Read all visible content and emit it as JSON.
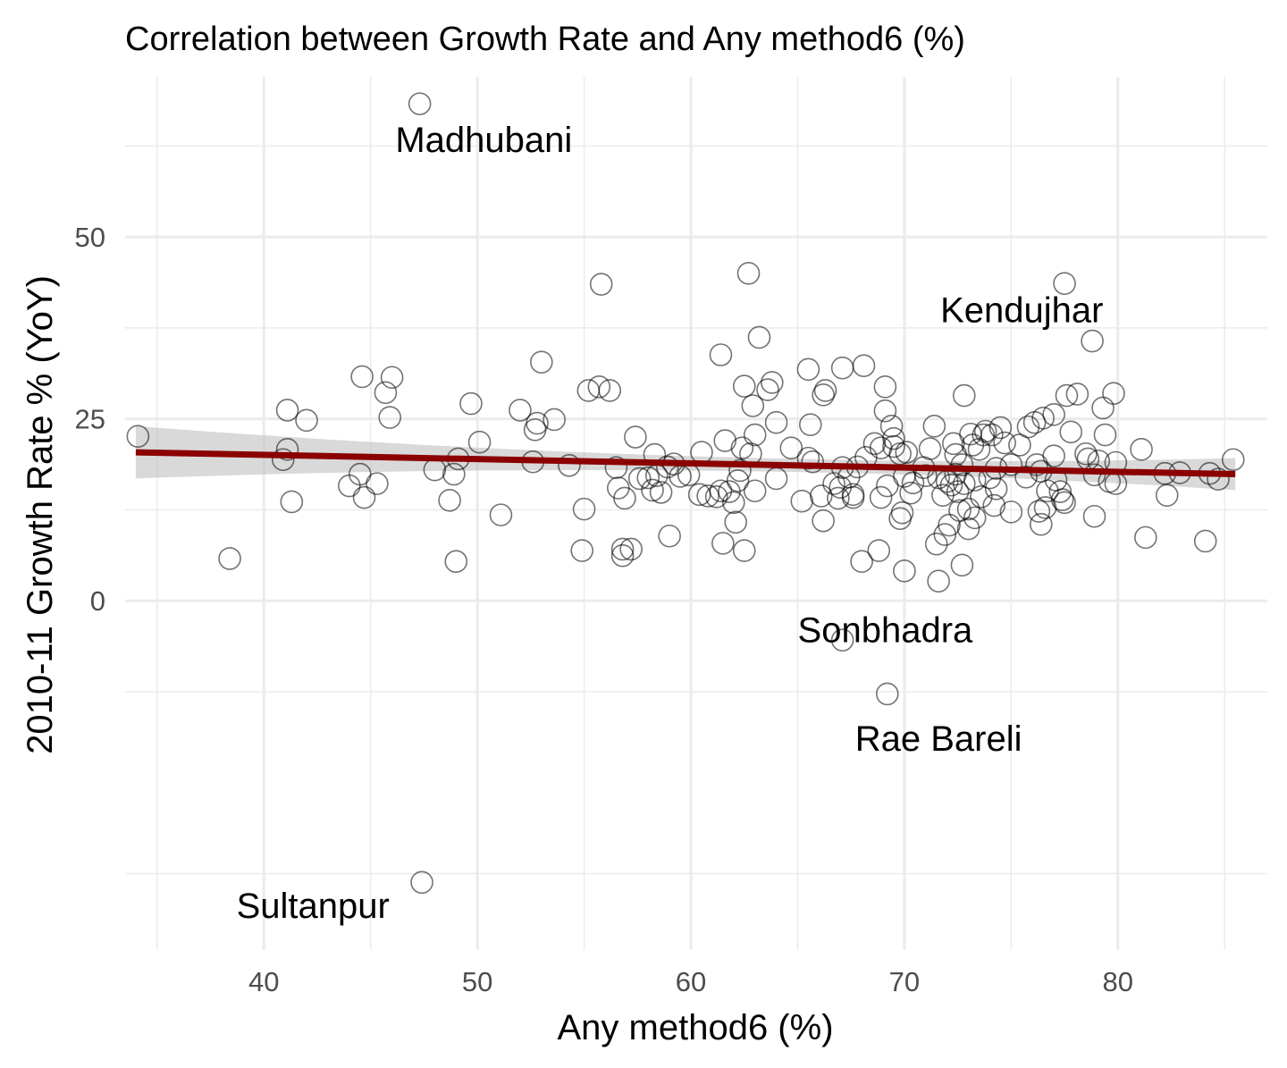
{
  "chart_data": {
    "type": "scatter",
    "title": "Correlation between Growth Rate and Any method6 (%)",
    "xlabel": "Any method6 (%)",
    "ylabel": "2010-11 Growth Rate % (YoY)",
    "xlim": [
      33.5,
      87
    ],
    "ylim": [
      -48,
      72
    ],
    "x_ticks": [
      40,
      50,
      60,
      70,
      80
    ],
    "y_ticks": [
      0,
      25,
      50
    ],
    "grid": true,
    "colors": {
      "trend_line": "#8b0000",
      "confidence_band": "#bfbfbf",
      "points": "#000000"
    },
    "trend": {
      "x": [
        34,
        85.5
      ],
      "y": [
        20.4,
        17.4
      ],
      "ci_low": [
        16.8,
        15.2
      ],
      "ci_high": [
        24.0,
        19.6
      ]
    },
    "annotations": [
      {
        "text": "Madhubani",
        "x": 50.3,
        "y": 63
      },
      {
        "text": "Kendujhar",
        "x": 75.5,
        "y": 39.6
      },
      {
        "text": "Sonbhadra",
        "x": 69.1,
        "y": -4.4
      },
      {
        "text": "Rae Bareli",
        "x": 71.6,
        "y": -19.3
      },
      {
        "text": "Sultanpur",
        "x": 42.3,
        "y": -42.3
      }
    ],
    "points": [
      [
        34.1,
        22.6
      ],
      [
        38.4,
        5.8
      ],
      [
        40.9,
        19.4
      ],
      [
        41.1,
        26.2
      ],
      [
        41.1,
        20.8
      ],
      [
        41.3,
        13.6
      ],
      [
        42.0,
        24.8
      ],
      [
        44.0,
        15.8
      ],
      [
        44.5,
        17.4
      ],
      [
        44.6,
        30.8
      ],
      [
        44.7,
        14.2
      ],
      [
        45.3,
        16.1
      ],
      [
        45.7,
        28.6
      ],
      [
        45.9,
        25.2
      ],
      [
        46.0,
        30.7
      ],
      [
        47.3,
        68.3
      ],
      [
        47.4,
        -38.7
      ],
      [
        48.0,
        18.0
      ],
      [
        48.7,
        13.8
      ],
      [
        48.9,
        17.4
      ],
      [
        49.0,
        5.4
      ],
      [
        49.1,
        19.5
      ],
      [
        49.7,
        27.1
      ],
      [
        50.1,
        21.8
      ],
      [
        51.1,
        11.8
      ],
      [
        52.0,
        26.2
      ],
      [
        52.6,
        19.1
      ],
      [
        52.7,
        23.5
      ],
      [
        52.8,
        24.4
      ],
      [
        53.0,
        32.8
      ],
      [
        53.6,
        24.9
      ],
      [
        54.3,
        18.6
      ],
      [
        54.9,
        6.9
      ],
      [
        55.0,
        12.6
      ],
      [
        55.2,
        28.9
      ],
      [
        55.7,
        29.4
      ],
      [
        55.8,
        43.5
      ],
      [
        56.2,
        28.9
      ],
      [
        56.5,
        18.3
      ],
      [
        56.6,
        15.5
      ],
      [
        56.8,
        7.1
      ],
      [
        56.8,
        6.2
      ],
      [
        56.9,
        14.1
      ],
      [
        57.2,
        7.1
      ],
      [
        57.4,
        22.5
      ],
      [
        57.6,
        16.8
      ],
      [
        58.0,
        16.9
      ],
      [
        58.2,
        15.2
      ],
      [
        58.3,
        20.1
      ],
      [
        58.4,
        17.2
      ],
      [
        58.6,
        14.9
      ],
      [
        58.9,
        18.4
      ],
      [
        59.0,
        8.9
      ],
      [
        59.2,
        18.8
      ],
      [
        59.5,
        17.1
      ],
      [
        59.9,
        17.3
      ],
      [
        60.4,
        14.6
      ],
      [
        60.5,
        20.4
      ],
      [
        60.8,
        14.4
      ],
      [
        61.2,
        14.3
      ],
      [
        61.4,
        15.1
      ],
      [
        61.4,
        33.8
      ],
      [
        61.5,
        7.9
      ],
      [
        61.6,
        22.0
      ],
      [
        61.8,
        15.0
      ],
      [
        62.0,
        13.5
      ],
      [
        62.1,
        10.8
      ],
      [
        62.2,
        16.5
      ],
      [
        62.3,
        17.9
      ],
      [
        62.4,
        21.0
      ],
      [
        62.5,
        29.5
      ],
      [
        62.5,
        6.9
      ],
      [
        62.7,
        45.0
      ],
      [
        62.8,
        20.2
      ],
      [
        62.9,
        26.8
      ],
      [
        63.0,
        22.8
      ],
      [
        63.0,
        15.1
      ],
      [
        63.2,
        36.2
      ],
      [
        63.6,
        29.0
      ],
      [
        63.8,
        30.0
      ],
      [
        64.0,
        16.8
      ],
      [
        64.0,
        24.5
      ],
      [
        64.7,
        21.0
      ],
      [
        65.2,
        13.7
      ],
      [
        65.5,
        19.6
      ],
      [
        65.5,
        31.8
      ],
      [
        65.6,
        24.2
      ],
      [
        65.7,
        19.1
      ],
      [
        66.1,
        14.4
      ],
      [
        66.2,
        11.0
      ],
      [
        66.2,
        28.3
      ],
      [
        66.3,
        28.9
      ],
      [
        66.7,
        16.1
      ],
      [
        66.9,
        14.1
      ],
      [
        67.0,
        15.6
      ],
      [
        67.1,
        32.0
      ],
      [
        67.1,
        18.3
      ],
      [
        67.1,
        -5.4
      ],
      [
        67.4,
        17.0
      ],
      [
        67.6,
        14.6
      ],
      [
        67.6,
        14.2
      ],
      [
        67.8,
        18.4
      ],
      [
        68.0,
        5.4
      ],
      [
        68.1,
        32.3
      ],
      [
        68.2,
        19.7
      ],
      [
        68.6,
        21.6
      ],
      [
        68.8,
        6.9
      ],
      [
        68.9,
        14.2
      ],
      [
        68.9,
        21.0
      ],
      [
        69.1,
        29.4
      ],
      [
        69.1,
        26.1
      ],
      [
        69.2,
        15.8
      ],
      [
        69.2,
        -12.8
      ],
      [
        69.4,
        24.0
      ],
      [
        69.5,
        22.3
      ],
      [
        69.5,
        21.2
      ],
      [
        69.8,
        11.3
      ],
      [
        69.8,
        20.2
      ],
      [
        69.9,
        12.1
      ],
      [
        70.0,
        17.1
      ],
      [
        70.0,
        4.1
      ],
      [
        70.1,
        20.4
      ],
      [
        70.3,
        14.8
      ],
      [
        70.4,
        16.2
      ],
      [
        70.9,
        18.3
      ],
      [
        71.0,
        17.2
      ],
      [
        71.2,
        20.9
      ],
      [
        71.4,
        24.0
      ],
      [
        71.5,
        7.8
      ],
      [
        71.6,
        2.7
      ],
      [
        71.6,
        16.9
      ],
      [
        71.8,
        14.5
      ],
      [
        71.9,
        9.1
      ],
      [
        72.0,
        16.4
      ],
      [
        72.1,
        10.4
      ],
      [
        72.2,
        15.9
      ],
      [
        72.3,
        21.6
      ],
      [
        72.4,
        20.1
      ],
      [
        72.4,
        17.4
      ],
      [
        72.5,
        15.0
      ],
      [
        72.6,
        12.4
      ],
      [
        72.7,
        18.7
      ],
      [
        72.7,
        4.9
      ],
      [
        72.8,
        16.1
      ],
      [
        72.8,
        28.2
      ],
      [
        73.0,
        9.9
      ],
      [
        73.0,
        12.6
      ],
      [
        73.1,
        22.9
      ],
      [
        73.2,
        21.4
      ],
      [
        73.3,
        11.4
      ],
      [
        73.3,
        16.6
      ],
      [
        73.5,
        20.8
      ],
      [
        73.6,
        14.3
      ],
      [
        73.7,
        22.8
      ],
      [
        73.8,
        23.3
      ],
      [
        74.0,
        16.9
      ],
      [
        74.1,
        22.8
      ],
      [
        74.2,
        13.1
      ],
      [
        74.3,
        18.2
      ],
      [
        74.3,
        15.4
      ],
      [
        74.5,
        23.8
      ],
      [
        74.7,
        21.7
      ],
      [
        75.0,
        18.7
      ],
      [
        75.0,
        12.2
      ],
      [
        75.4,
        21.4
      ],
      [
        75.7,
        17.0
      ],
      [
        75.8,
        23.9
      ],
      [
        76.1,
        24.5
      ],
      [
        76.2,
        18.7
      ],
      [
        76.3,
        12.3
      ],
      [
        76.4,
        17.8
      ],
      [
        76.4,
        10.5
      ],
      [
        76.5,
        25.1
      ],
      [
        76.6,
        12.8
      ],
      [
        76.7,
        15.1
      ],
      [
        77.0,
        19.9
      ],
      [
        77.0,
        25.6
      ],
      [
        77.1,
        16.6
      ],
      [
        77.3,
        15.0
      ],
      [
        77.4,
        13.9
      ],
      [
        77.5,
        13.5
      ],
      [
        77.5,
        43.6
      ],
      [
        77.6,
        28.2
      ],
      [
        77.8,
        23.2
      ],
      [
        78.1,
        28.4
      ],
      [
        78.5,
        20.2
      ],
      [
        78.6,
        19.5
      ],
      [
        78.8,
        35.7
      ],
      [
        78.9,
        17.3
      ],
      [
        78.9,
        11.6
      ],
      [
        79.1,
        19.2
      ],
      [
        79.3,
        26.5
      ],
      [
        79.4,
        22.8
      ],
      [
        79.6,
        16.4
      ],
      [
        79.8,
        28.5
      ],
      [
        79.9,
        19.0
      ],
      [
        79.9,
        16.1
      ],
      [
        81.1,
        20.8
      ],
      [
        81.3,
        8.7
      ],
      [
        82.2,
        17.5
      ],
      [
        82.3,
        14.5
      ],
      [
        82.9,
        17.6
      ],
      [
        84.1,
        8.2
      ],
      [
        84.3,
        17.5
      ],
      [
        84.7,
        16.7
      ],
      [
        85.4,
        19.4
      ]
    ]
  }
}
